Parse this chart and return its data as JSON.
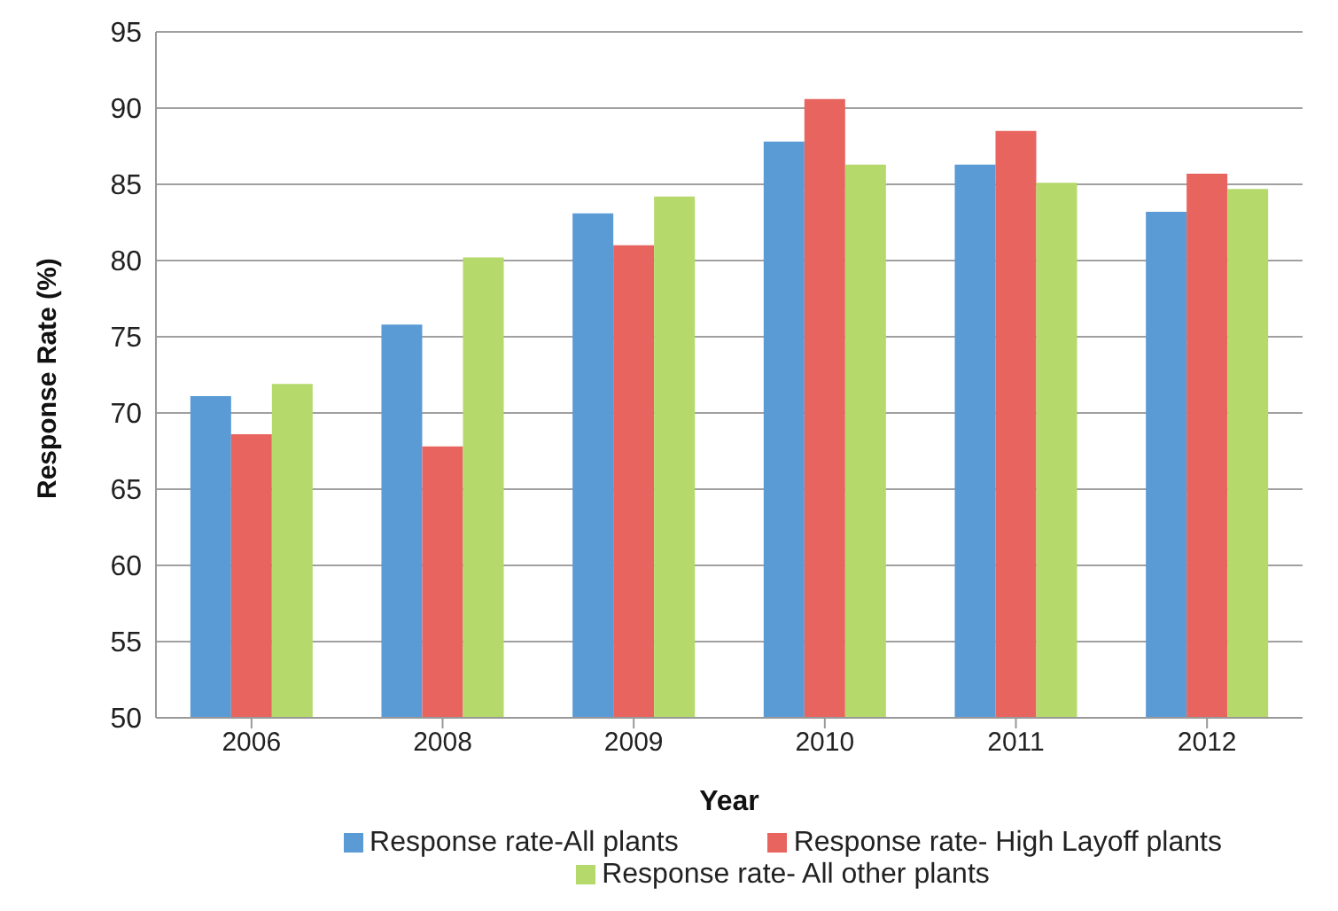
{
  "chart_data": {
    "type": "bar",
    "xlabel": "Year",
    "ylabel": "Response Rate (%)",
    "categories": [
      "2006",
      "2008",
      "2009",
      "2010",
      "2011",
      "2012"
    ],
    "series": [
      {
        "name": "Response rate-All plants",
        "color": "#5b9bd5",
        "values": [
          71.1,
          75.8,
          83.1,
          87.8,
          86.3,
          83.2
        ]
      },
      {
        "name": "Response rate- High Layoff plants",
        "color": "#e8645f",
        "values": [
          68.6,
          67.8,
          81.0,
          90.6,
          88.5,
          85.7
        ]
      },
      {
        "name": "Response rate- All other plants",
        "color": "#b5d96a",
        "values": [
          71.9,
          80.2,
          84.2,
          86.3,
          85.1,
          84.7
        ]
      }
    ],
    "ylim": [
      50,
      95
    ],
    "yticks": [
      50,
      55,
      60,
      65,
      70,
      75,
      80,
      85,
      90,
      95
    ],
    "grid": "y",
    "legend": "bottom"
  }
}
